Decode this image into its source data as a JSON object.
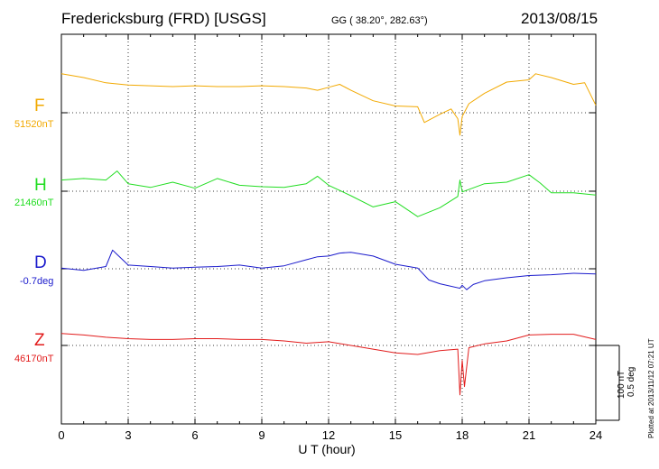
{
  "header": {
    "station": "Fredericksburg (FRD)  [USGS]",
    "coords": "GG ( 38.20°, 282.63°)",
    "date": "2013/08/15"
  },
  "footer": {
    "xlabel": "U T (hour)",
    "scale_nt": "100 nT",
    "scale_deg": "0.5 deg",
    "plotted": "Plotted at 2013/11/12 07:21  UT"
  },
  "chart_data": {
    "type": "line",
    "title": "Fredericksburg (FRD)  [USGS]",
    "xlabel": "U T (hour)",
    "xlim": [
      0,
      24
    ],
    "xticks": [
      0,
      3,
      6,
      9,
      12,
      15,
      18,
      21,
      24
    ],
    "tick_labels": [
      "0",
      "3",
      "6",
      "9",
      "12",
      "15",
      "18",
      "21",
      "24"
    ],
    "grid": true,
    "scale_bar": {
      "nT": 100,
      "deg": 0.5
    },
    "series": [
      {
        "name": "F",
        "baseline_label": "51520nT",
        "baseline": 51520,
        "unit": "nT",
        "color": "#f2a900",
        "points": [
          [
            0,
            52
          ],
          [
            1,
            47
          ],
          [
            2,
            40
          ],
          [
            3,
            37
          ],
          [
            4,
            36
          ],
          [
            5,
            35
          ],
          [
            6,
            36
          ],
          [
            7,
            35
          ],
          [
            8,
            35
          ],
          [
            9,
            36
          ],
          [
            10,
            35
          ],
          [
            11,
            33
          ],
          [
            11.5,
            30
          ],
          [
            12,
            34
          ],
          [
            12.5,
            38
          ],
          [
            13,
            30
          ],
          [
            14,
            16
          ],
          [
            15,
            9
          ],
          [
            16,
            8
          ],
          [
            16.3,
            -13
          ],
          [
            17,
            -2
          ],
          [
            17.5,
            5
          ],
          [
            17.8,
            -8
          ],
          [
            17.9,
            -30
          ],
          [
            18,
            -5
          ],
          [
            18.3,
            12
          ],
          [
            19,
            26
          ],
          [
            20,
            41
          ],
          [
            21,
            44
          ],
          [
            21.3,
            52
          ],
          [
            22,
            47
          ],
          [
            23,
            38
          ],
          [
            23.5,
            40
          ],
          [
            24,
            10
          ]
        ]
      },
      {
        "name": "H",
        "baseline_label": "21460nT",
        "baseline": 21460,
        "unit": "nT",
        "color": "#22dd22",
        "points": [
          [
            0,
            15
          ],
          [
            1,
            17
          ],
          [
            2,
            15
          ],
          [
            2.5,
            27
          ],
          [
            3,
            10
          ],
          [
            4,
            5
          ],
          [
            5,
            12
          ],
          [
            6,
            4
          ],
          [
            7,
            17
          ],
          [
            8,
            8
          ],
          [
            9,
            6
          ],
          [
            10,
            5
          ],
          [
            11,
            10
          ],
          [
            11.5,
            20
          ],
          [
            12,
            8
          ],
          [
            13,
            -6
          ],
          [
            14,
            -21
          ],
          [
            15,
            -14
          ],
          [
            16,
            -34
          ],
          [
            17,
            -22
          ],
          [
            17.8,
            -7
          ],
          [
            17.9,
            15
          ],
          [
            18,
            -1
          ],
          [
            19,
            10
          ],
          [
            20,
            12
          ],
          [
            21,
            22
          ],
          [
            21.5,
            11
          ],
          [
            22,
            -2
          ],
          [
            23,
            -2
          ],
          [
            24,
            -5
          ]
        ]
      },
      {
        "name": "D",
        "baseline_label": "-0.7deg",
        "baseline": -0.7,
        "unit": "deg",
        "color": "#1a1acc",
        "points": [
          [
            0,
            1
          ],
          [
            1,
            -2
          ],
          [
            2,
            3
          ],
          [
            2.3,
            25
          ],
          [
            3,
            5
          ],
          [
            4,
            3
          ],
          [
            5,
            1
          ],
          [
            6,
            2
          ],
          [
            7,
            3
          ],
          [
            8,
            5
          ],
          [
            9,
            1
          ],
          [
            10,
            4
          ],
          [
            11,
            12
          ],
          [
            11.5,
            16
          ],
          [
            12,
            17
          ],
          [
            12.5,
            21
          ],
          [
            13,
            22
          ],
          [
            14,
            17
          ],
          [
            15,
            6
          ],
          [
            16,
            1
          ],
          [
            16.5,
            -15
          ],
          [
            17,
            -20
          ],
          [
            17.9,
            -26
          ],
          [
            18,
            -22
          ],
          [
            18.2,
            -28
          ],
          [
            18.5,
            -21
          ],
          [
            19,
            -16
          ],
          [
            20,
            -12
          ],
          [
            21,
            -9
          ],
          [
            22,
            -8
          ],
          [
            23,
            -6
          ],
          [
            24,
            -7
          ]
        ]
      },
      {
        "name": "Z",
        "baseline_label": "46170nT",
        "baseline": 46170,
        "unit": "nT",
        "color": "#e21c1c",
        "points": [
          [
            0,
            16
          ],
          [
            1,
            14
          ],
          [
            2,
            11
          ],
          [
            3,
            9
          ],
          [
            4,
            8
          ],
          [
            5,
            8
          ],
          [
            6,
            9
          ],
          [
            7,
            9
          ],
          [
            8,
            8
          ],
          [
            9,
            8
          ],
          [
            10,
            6
          ],
          [
            11,
            3
          ],
          [
            12,
            5
          ],
          [
            13,
            0
          ],
          [
            14,
            -5
          ],
          [
            15,
            -10
          ],
          [
            16,
            -12
          ],
          [
            17,
            -7
          ],
          [
            17.8,
            -5
          ],
          [
            17.9,
            -66
          ],
          [
            18,
            -20
          ],
          [
            18.1,
            -55
          ],
          [
            18.3,
            -3
          ],
          [
            19,
            2
          ],
          [
            20,
            6
          ],
          [
            21,
            14
          ],
          [
            22,
            15
          ],
          [
            23,
            15
          ],
          [
            24,
            8
          ]
        ]
      }
    ]
  }
}
